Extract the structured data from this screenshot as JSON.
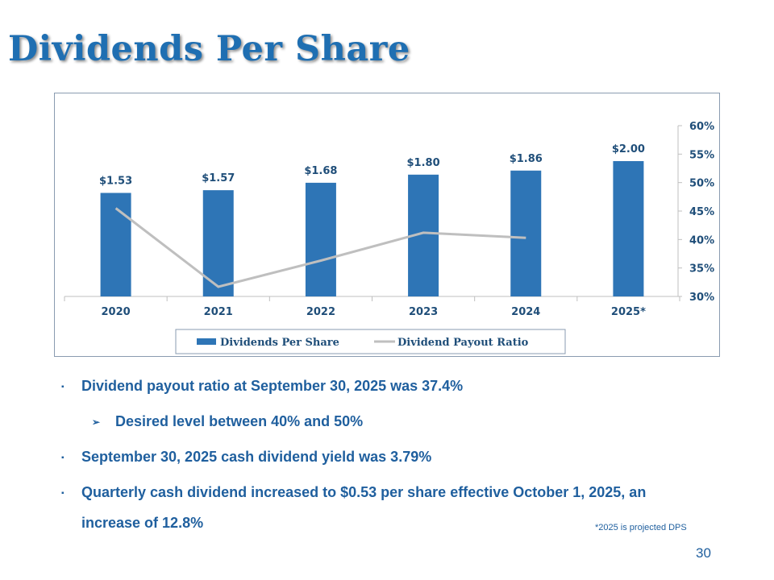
{
  "slide": {
    "title": "Dividends Per Share",
    "footnote": "*2025 is projected DPS",
    "page_number": "30"
  },
  "bullets": [
    {
      "level": 1,
      "marker": "▪",
      "text": "Dividend payout ratio at September 30, 2025 was 37.4%"
    },
    {
      "level": 2,
      "marker": "➢",
      "text": "Desired level between 40% and 50%"
    },
    {
      "level": 1,
      "marker": "▪",
      "text": "September 30, 2025 cash dividend yield was 3.79%"
    },
    {
      "level": 1,
      "marker": "▪",
      "text": "Quarterly cash dividend increased to $0.53 per share effective October 1, 2025, an increase of 12.8%"
    }
  ],
  "chart_data": {
    "type": "bar",
    "categories": [
      "2020",
      "2021",
      "2022",
      "2023",
      "2024",
      "2025*"
    ],
    "series": [
      {
        "name": "Dividends Per Share",
        "kind": "bar",
        "values": [
          1.53,
          1.57,
          1.68,
          1.8,
          1.86,
          2.0
        ],
        "labels": [
          "$1.53",
          "$1.57",
          "$1.68",
          "$1.80",
          "$1.86",
          "$2.00"
        ],
        "color": "#2e75b6"
      },
      {
        "name": "Dividend Payout Ratio",
        "kind": "line",
        "axis": "right",
        "values": [
          45.5,
          31.7,
          36.3,
          41.2,
          40.3,
          null
        ],
        "color": "#bfbfbf"
      }
    ],
    "y2lim": [
      30,
      60
    ],
    "y2ticks": [
      "30%",
      "35%",
      "40%",
      "45%",
      "50%",
      "55%",
      "60%"
    ],
    "legend": "bottom-center",
    "grid": false
  }
}
